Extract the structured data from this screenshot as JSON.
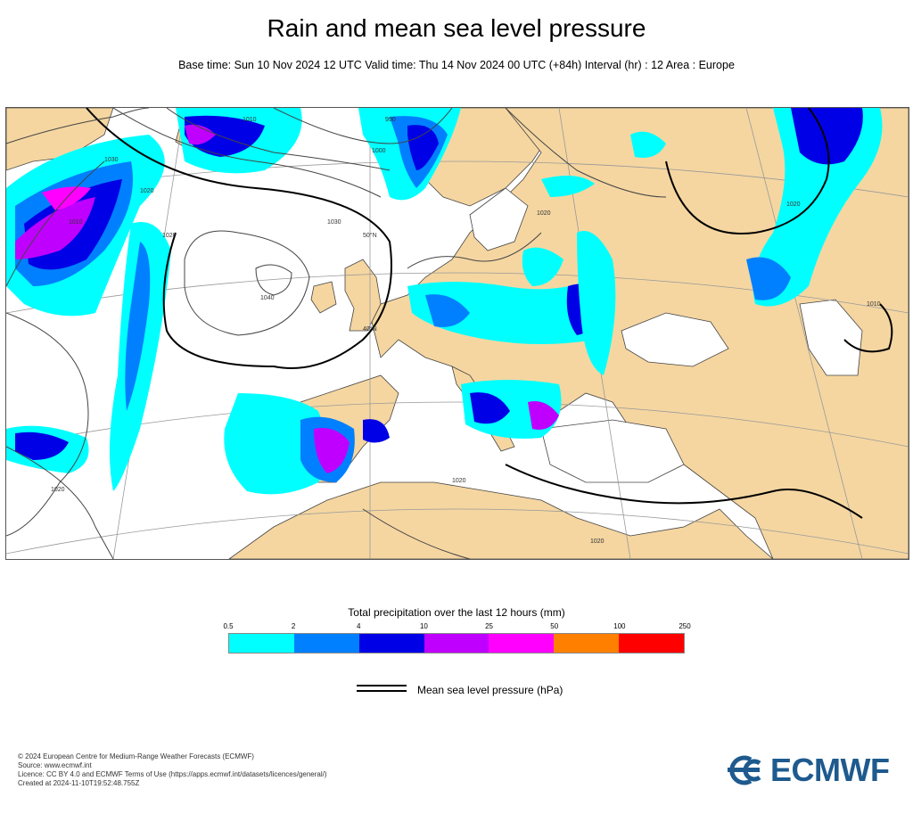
{
  "title": "Rain and mean sea level pressure",
  "subtitle": "Base time: Sun 10 Nov 2024 12 UTC Valid time: Thu 14 Nov 2024 00 UTC (+84h) Interval (hr) : 12 Area : Europe",
  "map": {
    "land_color": "#f5d6a1",
    "sea_color": "#ffffff",
    "isobar_labels": [
      "1040",
      "1030",
      "1030",
      "1020",
      "1020",
      "1020",
      "1010",
      "1010",
      "1000",
      "1020",
      "1020",
      "1010",
      "1020",
      "1020",
      "990"
    ],
    "lat_labels": [
      "50°N",
      "40°N"
    ]
  },
  "legend": {
    "title": "Total precipitation over the last 12 hours (mm)",
    "ticks": [
      "0.5",
      "2",
      "4",
      "10",
      "25",
      "50",
      "100",
      "250"
    ],
    "colors": [
      "#00ffff",
      "#0080ff",
      "#0000e6",
      "#c000ff",
      "#ff00ff",
      "#ff8000",
      "#ff0000"
    ]
  },
  "mslp_legend": {
    "label": "Mean sea level pressure (hPa)"
  },
  "footer": {
    "line1": "© 2024 European Centre for Medium-Range Weather Forecasts (ECMWF)",
    "line2": "Source: www.ecmwf.int",
    "line3": "Licence: CC BY 4.0 and ECMWF Terms of Use (https://apps.ecmwf.int/datasets/licences/general/)",
    "line4": "Created at 2024-11-10T19:52:48.755Z"
  },
  "logo": {
    "text": "ECMWF",
    "color": "#1e5a8e"
  }
}
